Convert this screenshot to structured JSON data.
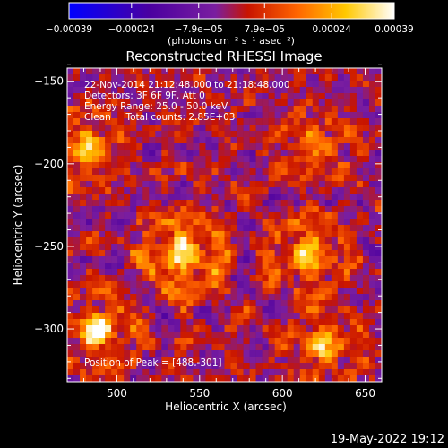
{
  "chart_data": {
    "type": "heatmap",
    "title": "Reconstructed RHESSI Image",
    "xlabel": "Heliocentric X (arcsec)",
    "ylabel": "Heliocentric Y (arcsec)",
    "xlim": [
      470,
      660
    ],
    "ylim": [
      -332,
      -142
    ],
    "x_ticks": [
      500,
      550,
      600,
      650
    ],
    "x_tick_labels": [
      "500",
      "550",
      "600",
      "650"
    ],
    "y_ticks": [
      -150,
      -200,
      -250,
      -300
    ],
    "y_tick_labels": [
      "−150",
      "−200",
      "−250",
      "−300"
    ],
    "colorbar": {
      "range": [
        -0.00039,
        0.00039
      ],
      "ticks": [
        -0.00039,
        -0.00024,
        -7.9e-05,
        7.9e-05,
        0.00024,
        0.00039
      ],
      "tick_labels": [
        "−0.00039",
        "−0.00024",
        "−7.9e−05",
        "7.9e−05",
        "0.00024",
        "0.00039"
      ],
      "unit_label": "(photons cm⁻² s⁻¹ asec⁻²)",
      "colors": [
        "#0000ff",
        "#4b00a0",
        "#7a1ea0",
        "#c81400",
        "#ff6400",
        "#ffc800",
        "#ffffff"
      ]
    },
    "annotations": [
      "22-Nov-2014 21:12:48.000 to 21:18:48.000",
      "Detectors: 3F 6F 9F, Att 0",
      "Energy Range: 25.0 - 50.0 keV",
      "Clean     Total counts: 2.85E+03"
    ],
    "peak_label": "Position of Peak = [488,-301]",
    "peak": [
      488,
      -301
    ],
    "sources": [
      {
        "x": 540,
        "y": -255,
        "amp": 0.0003,
        "sigma": 14
      },
      {
        "x": 488,
        "y": -301,
        "amp": 0.00039,
        "sigma": 10
      },
      {
        "x": 482,
        "y": -190,
        "amp": 0.00025,
        "sigma": 12
      },
      {
        "x": 615,
        "y": -255,
        "amp": 0.00028,
        "sigma": 12
      },
      {
        "x": 625,
        "y": -310,
        "amp": 0.00024,
        "sigma": 12
      },
      {
        "x": 620,
        "y": -190,
        "amp": 0.00018,
        "sigma": 12
      }
    ]
  },
  "timestamp": "19-May-2022 19:12"
}
